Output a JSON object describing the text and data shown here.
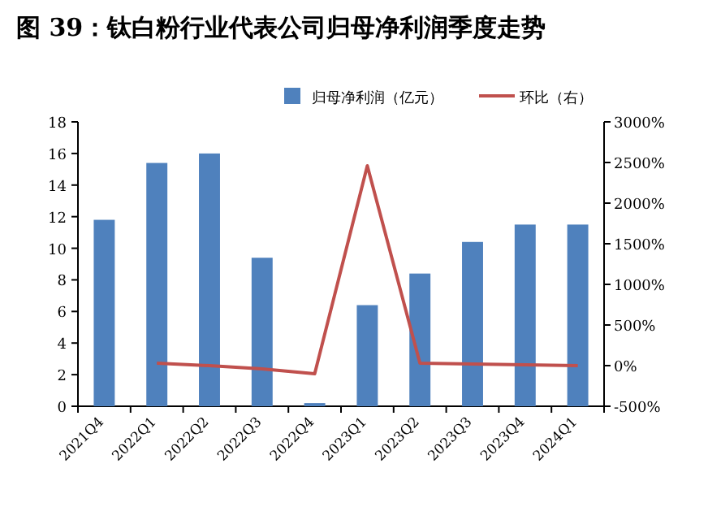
{
  "chart_data": {
    "type": "bar",
    "title": "图 39：钛白粉行业代表公司归母净利润季度走势",
    "categories": [
      "2021Q4",
      "2022Q1",
      "2022Q2",
      "2022Q3",
      "2022Q4",
      "2023Q1",
      "2023Q2",
      "2023Q3",
      "2023Q4",
      "2024Q1"
    ],
    "series": [
      {
        "name": "归母净利润（亿元）",
        "color": "#4f81bd",
        "values": [
          11.8,
          15.4,
          16.0,
          9.4,
          0.2,
          6.4,
          8.4,
          10.4,
          11.5,
          11.5
        ]
      },
      {
        "name": "环比（右）",
        "type": "line",
        "axis": "y2",
        "color": "#c0504d",
        "values": [
          null,
          30,
          0,
          -40,
          -100,
          2460,
          30,
          20,
          10,
          0
        ]
      }
    ],
    "ylim": [
      0,
      18
    ],
    "yticks": [
      0,
      2,
      4,
      6,
      8,
      10,
      12,
      14,
      16,
      18
    ],
    "y2lim": [
      -500,
      3000
    ],
    "y2ticks": [
      {
        "value": -500,
        "label": "-500%"
      },
      {
        "value": 0,
        "label": "0%"
      },
      {
        "value": 500,
        "label": "500%"
      },
      {
        "value": 1000,
        "label": "1000%"
      },
      {
        "value": 1500,
        "label": "1500%"
      },
      {
        "value": 2000,
        "label": "2000%"
      },
      {
        "value": 2500,
        "label": "2500%"
      },
      {
        "value": 3000,
        "label": "3000%"
      }
    ],
    "legend": "top",
    "grid": false
  }
}
